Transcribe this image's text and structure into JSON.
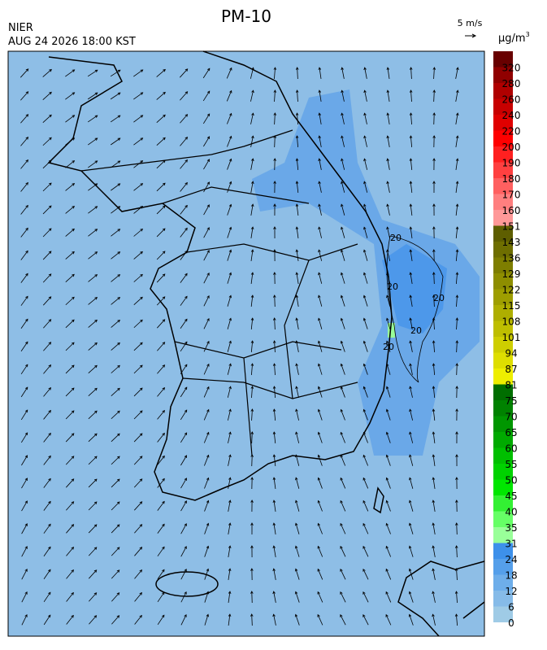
{
  "header": {
    "title": "PM-10",
    "agency": "NIER",
    "timestamp": "AUG 24 2026 18:00 KST"
  },
  "wind_scale": {
    "label": "5 m/s"
  },
  "legend": {
    "unit": "μg/m",
    "unit_exponent": "3",
    "ticks": [
      0,
      6,
      12,
      18,
      24,
      31,
      35,
      40,
      45,
      50,
      55,
      60,
      65,
      70,
      75,
      81,
      87,
      94,
      101,
      108,
      115,
      122,
      129,
      136,
      143,
      151,
      160,
      170,
      180,
      190,
      200,
      220,
      240,
      260,
      280,
      320
    ],
    "colors": [
      "#9fcbe6",
      "#86bbe8",
      "#6eaeea",
      "#559fea",
      "#3d90ea",
      "#99ff99",
      "#66ff66",
      "#33f033",
      "#00e600",
      "#00d200",
      "#00bf00",
      "#00aa00",
      "#009600",
      "#008200",
      "#006e00",
      "#eeee00",
      "#dede00",
      "#cece00",
      "#bebe00",
      "#aeae00",
      "#9e9e00",
      "#8e8e00",
      "#7e7e00",
      "#6e6e00",
      "#5e5e00",
      "#ff9999",
      "#ff7f7f",
      "#ff6060",
      "#ff4040",
      "#ff2020",
      "#ff0000",
      "#e00000",
      "#c80000",
      "#b00000",
      "#900000",
      "#680000"
    ]
  },
  "contours": {
    "labels": [
      "20",
      "20",
      "20",
      "20",
      "20"
    ]
  }
}
